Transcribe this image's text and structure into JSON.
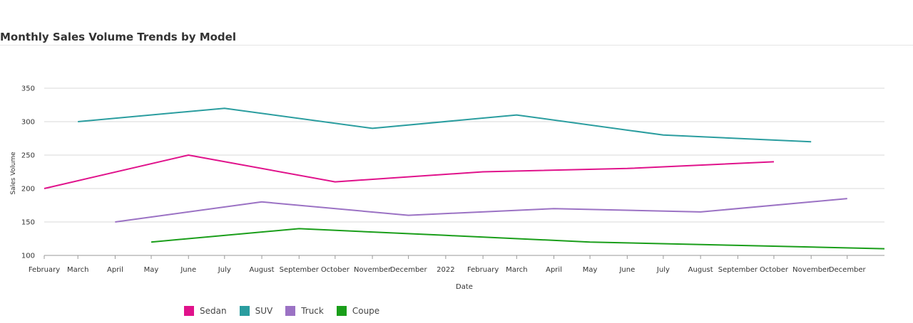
{
  "chart_data": {
    "type": "line",
    "title": "Monthly Sales Volume Trends by Model",
    "xlabel": "Date",
    "ylabel": "Sales Volume",
    "ylim": [
      100,
      350
    ],
    "yticks": [
      100,
      150,
      200,
      250,
      300,
      350
    ],
    "xtick_labels": [
      "February",
      "March",
      "April",
      "May",
      "June",
      "July",
      "August",
      "September",
      "October",
      "November",
      "December",
      "2022",
      "February",
      "March",
      "April",
      "May",
      "June",
      "July",
      "August",
      "September",
      "October",
      "November",
      "December"
    ],
    "xtick_dates": [
      "2021-02",
      "2021-03",
      "2021-04",
      "2021-05",
      "2021-06",
      "2021-07",
      "2021-08",
      "2021-09",
      "2021-10",
      "2021-11",
      "2021-12",
      "2022-01",
      "2022-02",
      "2022-03",
      "2022-04",
      "2022-05",
      "2022-06",
      "2022-07",
      "2022-08",
      "2022-09",
      "2022-10",
      "2022-11",
      "2022-12"
    ],
    "grid": true,
    "legend_position": "bottom",
    "series": [
      {
        "name": "Sedan",
        "color": "#e0128b",
        "x": [
          "2021-02-01",
          "2021-06-01",
          "2021-10-01",
          "2022-02-01",
          "2022-06-01",
          "2022-10-01"
        ],
        "y": [
          200,
          250,
          210,
          225,
          230,
          240
        ]
      },
      {
        "name": "SUV",
        "color": "#2a9d9f",
        "x": [
          "2021-03-01",
          "2021-07-01",
          "2021-11-01",
          "2022-03-01",
          "2022-07-01",
          "2022-11-01"
        ],
        "y": [
          300,
          320,
          290,
          310,
          280,
          270
        ]
      },
      {
        "name": "Truck",
        "color": "#9b72c4",
        "x": [
          "2021-04-01",
          "2021-08-01",
          "2021-12-01",
          "2022-04-01",
          "2022-08-01",
          "2022-12-01"
        ],
        "y": [
          150,
          180,
          160,
          170,
          165,
          185
        ]
      },
      {
        "name": "Coupe",
        "color": "#1a9e1a",
        "x": [
          "2021-05-01",
          "2021-09-01",
          "2022-01-01",
          "2022-05-01",
          "2022-09-01",
          "2023-01-01"
        ],
        "y": [
          120,
          140,
          130,
          120,
          115,
          110
        ]
      }
    ]
  }
}
